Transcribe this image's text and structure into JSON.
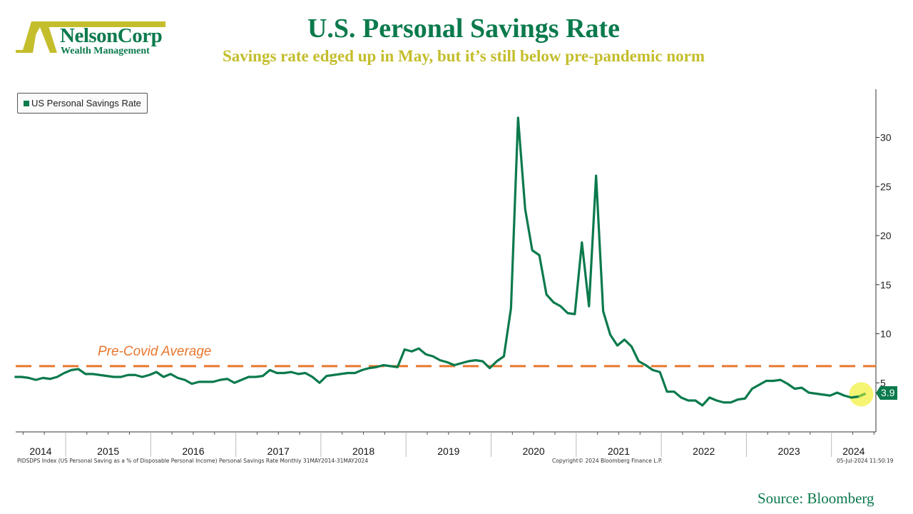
{
  "header": {
    "title": "U.S. Personal Savings Rate",
    "subtitle": "Savings rate edged up in May, but it’s still below pre-pandemic norm"
  },
  "logo": {
    "name": "NelsonCorp",
    "tagline": "Wealth Management",
    "colors": {
      "mark": "#c4bd2c",
      "text": "#0b7a4c"
    }
  },
  "footer": {
    "left": "PIDSDPS Index (US Personal Saving as a % of Disposable Personal Income) Personal Savings Rate  Monthly 31MAY2014-31MAY2024",
    "middle": "Copyright© 2024 Bloomberg Finance L.P.",
    "right": "05-Jul-2024 11:50:19",
    "source": "Source: Bloomberg"
  },
  "chart_data": {
    "type": "line",
    "title": "U.S. Personal Savings Rate",
    "legend": {
      "position": "top-left",
      "entries": [
        "US Personal Savings Rate"
      ]
    },
    "x_start": "2014-05",
    "x_end": "2024-05",
    "frequency": "monthly",
    "x_tick_labels": [
      "2014",
      "2015",
      "2016",
      "2017",
      "2018",
      "2019",
      "2020",
      "2021",
      "2022",
      "2023",
      "2024"
    ],
    "y_ticks": [
      5,
      10,
      15,
      20,
      25,
      30
    ],
    "y_axis_side": "right",
    "ylim": [
      0,
      34
    ],
    "grid": false,
    "series": [
      {
        "name": "US Personal Savings Rate",
        "color": "#0b7a4c",
        "values": [
          5.6,
          5.6,
          5.5,
          5.3,
          5.5,
          5.4,
          5.6,
          6.0,
          6.3,
          6.4,
          5.9,
          5.9,
          5.8,
          5.7,
          5.6,
          5.6,
          5.8,
          5.8,
          5.6,
          5.8,
          6.1,
          5.6,
          5.9,
          5.5,
          5.3,
          4.9,
          5.1,
          5.1,
          5.1,
          5.3,
          5.4,
          5.0,
          5.3,
          5.6,
          5.6,
          5.7,
          6.3,
          6.0,
          6.0,
          6.1,
          5.9,
          6.0,
          5.6,
          5.0,
          5.7,
          5.8,
          5.9,
          6.0,
          6.0,
          6.3,
          6.5,
          6.6,
          6.8,
          6.7,
          6.6,
          8.4,
          8.2,
          8.5,
          7.9,
          7.7,
          7.3,
          7.1,
          6.8,
          7.0,
          7.2,
          7.3,
          7.2,
          6.5,
          7.2,
          7.7,
          12.6,
          32.0,
          22.7,
          18.5,
          18.0,
          14.0,
          13.2,
          12.8,
          12.1,
          12.0,
          19.3,
          12.8,
          26.1,
          12.3,
          9.9,
          8.8,
          9.4,
          8.7,
          7.2,
          6.8,
          6.3,
          6.1,
          4.1,
          4.1,
          3.5,
          3.2,
          3.2,
          2.7,
          3.5,
          3.2,
          3.0,
          3.0,
          3.3,
          3.4,
          4.4,
          4.8,
          5.2,
          5.2,
          5.3,
          4.9,
          4.4,
          4.5,
          4.0,
          3.9,
          3.8,
          3.7,
          4.0,
          3.7,
          3.5,
          3.6,
          3.9
        ]
      }
    ],
    "reference_line": {
      "label": "Pre-Covid Average",
      "value": 6.7,
      "color": "#e8772e",
      "style": "dashed"
    },
    "last_value_label": "3.9",
    "highlight_color": "#f5f25a"
  }
}
